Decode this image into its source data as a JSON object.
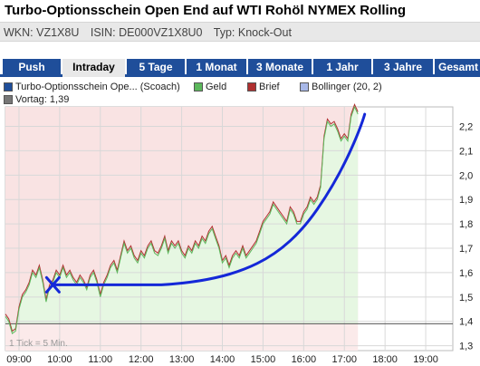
{
  "header": {
    "title": "Turbo-Optionsschein Open End auf WTI Rohöl NYMEX Rolling",
    "wkn": "WKN: VZ1X8U",
    "isin": "ISIN: DE000VZ1X8U0",
    "typ": "Typ: Knock-Out"
  },
  "tabs": [
    {
      "label": "Push"
    },
    {
      "label": "Intraday",
      "active": true
    },
    {
      "label": "5 Tage"
    },
    {
      "label": "1 Monat"
    },
    {
      "label": "3 Monate"
    },
    {
      "label": "1 Jahr"
    },
    {
      "label": "3 Jahre"
    },
    {
      "label": "Gesamt"
    }
  ],
  "legend": {
    "series1": "Turbo-Optionsschein Ope... (Scoach)",
    "geld": "Geld",
    "brief": "Brief",
    "bollinger": "Bollinger (20, 2)",
    "vortag": "Vortag: 1,39"
  },
  "colors": {
    "tab_bg": "#1f4e9a",
    "series1": "#1f4e9a",
    "geld": "#5cb85c",
    "brief": "#b03030",
    "bollinger": "#a8b8e8",
    "area_fill": "#e6f7e2",
    "above_bg": "#f9e3e3",
    "overlay": "#1428d8"
  },
  "chart_data": {
    "type": "line",
    "title": "",
    "tick_note": "1 Tick = 5 Min.",
    "xlabel": "",
    "ylabel": "",
    "xlim": [
      "08:40",
      "19:40"
    ],
    "ylim": [
      1.28,
      2.28
    ],
    "x_ticks": [
      "09:00",
      "10:00",
      "11:00",
      "12:00",
      "13:00",
      "14:00",
      "15:00",
      "16:00",
      "17:00",
      "18:00",
      "19:00"
    ],
    "y_ticks": [
      "1,3",
      "1,4",
      "1,5",
      "1,6",
      "1,7",
      "1,8",
      "1,9",
      "2,0",
      "2,1",
      "2,2"
    ],
    "reference_line": {
      "name": "Vortag",
      "value": 1.39
    },
    "series": [
      {
        "name": "Geld",
        "x": [
          "08:40",
          "08:45",
          "08:50",
          "08:55",
          "09:00",
          "09:05",
          "09:10",
          "09:15",
          "09:20",
          "09:25",
          "09:30",
          "09:35",
          "09:40",
          "09:45",
          "09:50",
          "09:55",
          "10:00",
          "10:05",
          "10:10",
          "10:15",
          "10:20",
          "10:25",
          "10:30",
          "10:35",
          "10:40",
          "10:45",
          "10:50",
          "10:55",
          "11:00",
          "11:05",
          "11:10",
          "11:15",
          "11:20",
          "11:25",
          "11:30",
          "11:35",
          "11:40",
          "11:45",
          "11:50",
          "11:55",
          "12:00",
          "12:05",
          "12:10",
          "12:15",
          "12:20",
          "12:25",
          "12:30",
          "12:35",
          "12:40",
          "12:45",
          "12:50",
          "12:55",
          "13:00",
          "13:05",
          "13:10",
          "13:15",
          "13:20",
          "13:25",
          "13:30",
          "13:35",
          "13:40",
          "13:45",
          "13:50",
          "13:55",
          "14:00",
          "14:05",
          "14:10",
          "14:15",
          "14:20",
          "14:25",
          "14:30",
          "14:35",
          "14:40",
          "14:45",
          "14:50",
          "14:55",
          "15:00",
          "15:05",
          "15:10",
          "15:15",
          "15:20",
          "15:25",
          "15:30",
          "15:35",
          "15:40",
          "15:45",
          "15:50",
          "15:55",
          "16:00",
          "16:05",
          "16:10",
          "16:15",
          "16:20",
          "16:25",
          "16:30",
          "16:35",
          "16:40",
          "16:45",
          "16:50",
          "16:55",
          "17:00",
          "17:05",
          "17:10",
          "17:15",
          "17:20"
        ],
        "values": [
          1.42,
          1.4,
          1.35,
          1.36,
          1.45,
          1.5,
          1.52,
          1.55,
          1.6,
          1.58,
          1.62,
          1.56,
          1.48,
          1.54,
          1.56,
          1.6,
          1.58,
          1.62,
          1.58,
          1.6,
          1.57,
          1.55,
          1.58,
          1.56,
          1.53,
          1.58,
          1.6,
          1.56,
          1.5,
          1.55,
          1.58,
          1.62,
          1.64,
          1.6,
          1.66,
          1.72,
          1.68,
          1.7,
          1.66,
          1.64,
          1.68,
          1.66,
          1.7,
          1.72,
          1.68,
          1.67,
          1.7,
          1.74,
          1.68,
          1.72,
          1.7,
          1.72,
          1.68,
          1.66,
          1.7,
          1.68,
          1.72,
          1.7,
          1.74,
          1.72,
          1.76,
          1.78,
          1.74,
          1.7,
          1.64,
          1.66,
          1.62,
          1.66,
          1.68,
          1.66,
          1.7,
          1.66,
          1.68,
          1.7,
          1.72,
          1.76,
          1.8,
          1.82,
          1.84,
          1.88,
          1.86,
          1.84,
          1.82,
          1.8,
          1.86,
          1.84,
          1.8,
          1.8,
          1.84,
          1.86,
          1.9,
          1.88,
          1.9,
          1.95,
          2.15,
          2.22,
          2.2,
          2.21,
          2.18,
          2.14,
          2.16,
          2.14,
          2.24,
          2.28,
          2.25
        ]
      },
      {
        "name": "Brief",
        "values_offset": 0.01
      }
    ],
    "overlay": {
      "x_marker": {
        "x": "09:50",
        "y": 1.55
      },
      "curve": [
        [
          "09:50",
          1.55
        ],
        [
          "12:30",
          1.55
        ],
        [
          "14:30",
          1.57
        ],
        [
          "15:30",
          1.66
        ],
        [
          "16:20",
          1.86
        ],
        [
          "17:30",
          2.25
        ]
      ]
    }
  }
}
